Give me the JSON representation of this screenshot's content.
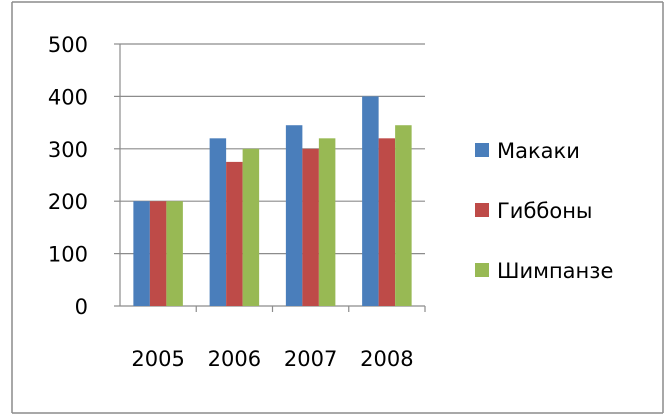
{
  "chart_data": {
    "type": "bar",
    "title": "",
    "xlabel": "",
    "ylabel": "",
    "categories": [
      "2005",
      "2006",
      "2007",
      "2008"
    ],
    "series": [
      {
        "name": "Макаки",
        "values": [
          200,
          320,
          345,
          400
        ],
        "color": "#4a7ebb"
      },
      {
        "name": "Гиббоны",
        "values": [
          200,
          275,
          300,
          320
        ],
        "color": "#be4b48"
      },
      {
        "name": "Шимпанзе",
        "values": [
          200,
          300,
          320,
          345
        ],
        "color": "#98b954"
      }
    ],
    "ylim": [
      0,
      500
    ],
    "yticks": [
      "0",
      "100",
      "200",
      "300",
      "400",
      "500"
    ],
    "grid": true,
    "legend_position": "right"
  }
}
